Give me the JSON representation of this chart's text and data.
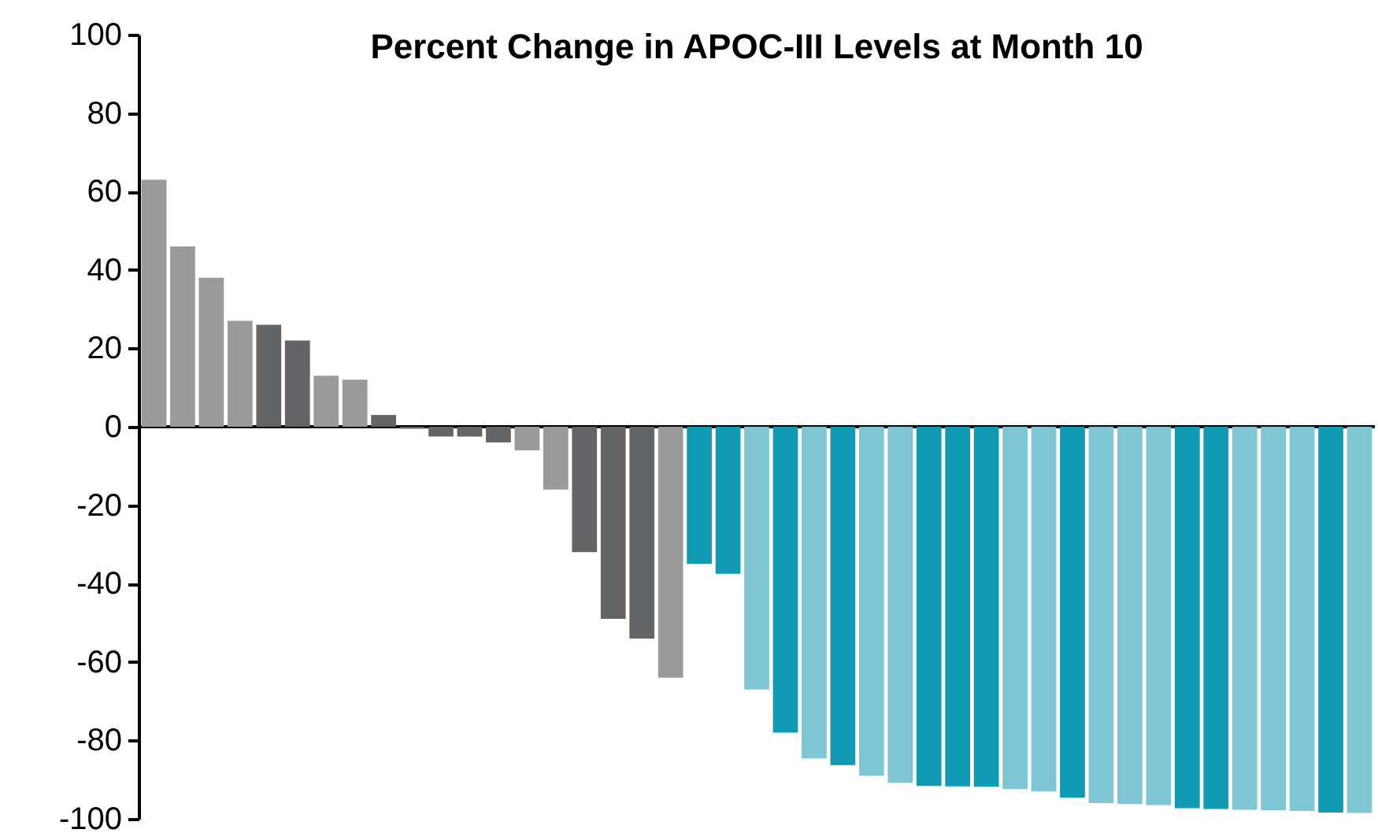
{
  "chart_data": {
    "type": "bar",
    "title": "Percent Change in APOC-III Levels at Month 10",
    "categories": [
      null,
      null,
      null,
      null,
      null,
      null,
      null,
      null,
      null,
      null,
      null,
      null,
      null,
      null,
      null,
      null,
      null,
      null,
      null,
      null,
      null,
      null,
      null,
      null,
      null,
      null,
      null,
      null,
      null,
      null,
      null,
      null,
      null,
      null,
      null,
      null,
      null,
      null,
      null,
      null,
      null,
      null,
      null
    ],
    "values": [
      63,
      46,
      38,
      27,
      26,
      22,
      13,
      12,
      3,
      -0.5,
      -2.5,
      -2.5,
      -4,
      -6,
      -16,
      -32,
      -49,
      -54,
      -64,
      -35,
      -37.5,
      -67,
      -78,
      -84.6,
      -86.3,
      -89,
      -90.8,
      -91.6,
      -91.7,
      -91.8,
      -92.4,
      -93,
      -94.6,
      -96,
      -96.2,
      -96.5,
      -97.3,
      -97.5,
      -97.7,
      -97.8,
      -98,
      -98.4,
      -98.5
    ],
    "colors": [
      "#9a9a9b",
      "#9a9a9b",
      "#9a9a9b",
      "#9a9a9b",
      "#636466",
      "#636466",
      "#9a9a9b",
      "#9a9a9b",
      "#636466",
      "#636466",
      "#636466",
      "#636466",
      "#636466",
      "#9a9a9b",
      "#9a9a9b",
      "#636466",
      "#636466",
      "#636466",
      "#9a9a9b",
      "#119ab4",
      "#119ab4",
      "#7fc6d4",
      "#119ab4",
      "#7fc6d4",
      "#119ab4",
      "#7fc6d4",
      "#7fc6d4",
      "#119ab4",
      "#119ab4",
      "#119ab4",
      "#7fc6d4",
      "#7fc6d4",
      "#119ab4",
      "#7fc6d4",
      "#7fc6d4",
      "#7fc6d4",
      "#119ab4",
      "#119ab4",
      "#7fc6d4",
      "#7fc6d4",
      "#7fc6d4",
      "#119ab4",
      "#7fc6d4"
    ],
    "ylim": [
      -100,
      100
    ],
    "yticks": [
      -100,
      -80,
      -60,
      -40,
      -20,
      0,
      20,
      40,
      60,
      80,
      100
    ]
  }
}
